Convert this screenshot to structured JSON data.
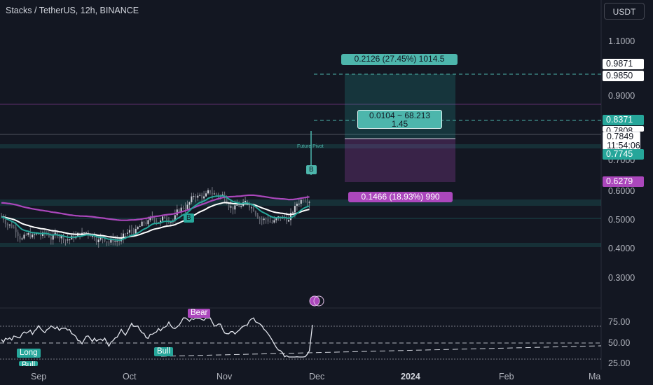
{
  "title": "Stacks / TetherUS, 12h, BINANCE",
  "currency_button": "USDT",
  "price_axis": {
    "ticks": [
      "1.1000",
      "0.9000",
      "0.7000",
      "0.6000",
      "0.5000",
      "0.4000",
      "0.3000"
    ],
    "tags": {
      "tag_0987": "0.9871",
      "tag_0985": "0.9850",
      "tag_0837": "0.8371",
      "tag_0780": "0.7808",
      "current_price": "0.7849",
      "countdown": "11:54:06",
      "tag_0774": "0.7745",
      "tag_0627": "0.6279"
    }
  },
  "position_tool": {
    "target_label": "0.2126 (27.45%) 1014.5",
    "center_line1": "0.0104 ~ 68.213",
    "center_line2": "1.45",
    "stop_label": "0.1466 (18.93%) 990"
  },
  "annotations": {
    "future_pivot": "Future Pivot",
    "buy_marker": "B",
    "buy_marker_2": "B"
  },
  "rsi_panel": {
    "ticks": [
      "75.00",
      "50.00",
      "25.00"
    ],
    "bear_label": "Bear",
    "bull_label": "Bull",
    "long_label": "Long",
    "bull_label_2": "Bull"
  },
  "time_axis": [
    "Sep",
    "Oct",
    "Nov",
    "Dec",
    "2024",
    "Feb",
    "Ma"
  ],
  "colors": {
    "background": "#131722",
    "up": "#26a69a",
    "down": "#ef5350",
    "candle": "#d1d4dc",
    "accent_teal": "#4db6ac",
    "accent_purple": "#ab47bc"
  }
}
